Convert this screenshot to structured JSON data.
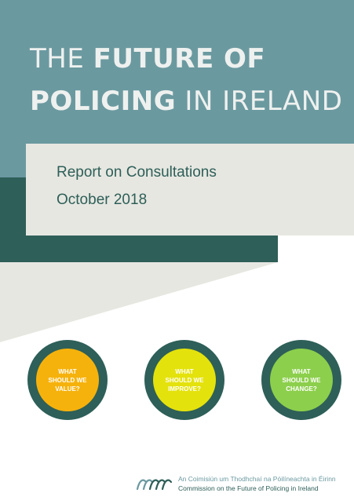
{
  "cover": {
    "title_part1": "THE ",
    "title_bold1": "FUTURE OF",
    "title_bold2": "POLICING",
    "title_part2": " IN IRELAND",
    "subtitle_line1": "Report on Consultations",
    "subtitle_line2": "October 2018"
  },
  "circles": [
    {
      "text": "WHAT\nSHOULD WE\nVALUE?",
      "color": "#f6b20c"
    },
    {
      "text": "WHAT\nSHOULD WE\nIMPROVE?",
      "color": "#e4e20c"
    },
    {
      "text": "WHAT\nSHOULD WE\nCHANGE?",
      "color": "#8ccf4c"
    }
  ],
  "footer": {
    "irish_name": "An Coimisiún um Thodhchaí na Póilíneachta in Éirinn",
    "english_name": "Commission on the Future of Policing in Ireland"
  },
  "colors": {
    "teal": "#6b99a0",
    "dark_green": "#2e5f58",
    "grey": "#e7e7e1"
  }
}
